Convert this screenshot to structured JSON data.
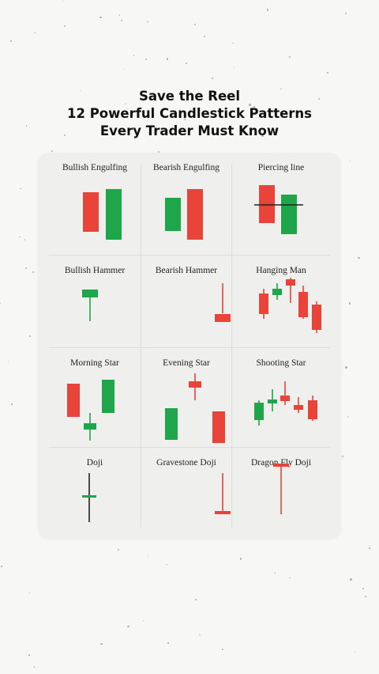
{
  "header": {
    "line1": "Save the Reel",
    "line2": "12 Powerful Candlestick Patterns",
    "line3": "Every Trader Must Know"
  },
  "colors": {
    "bull": "#1fa64a",
    "bear": "#e8443a",
    "line": "#222222"
  },
  "patterns": [
    {
      "label": "Bullish Engulfing",
      "icon": "bullish-engulfing-icon"
    },
    {
      "label": "Bearish Engulfing",
      "icon": "bearish-engulfing-icon"
    },
    {
      "label": "Piercing line",
      "icon": "piercing-line-icon"
    },
    {
      "label": "Bullish Hammer",
      "icon": "bullish-hammer-icon"
    },
    {
      "label": "Bearish Hammer",
      "icon": "bearish-hammer-icon"
    },
    {
      "label": "Hanging Man",
      "icon": "hanging-man-icon"
    },
    {
      "label": "Morning Star",
      "icon": "morning-star-icon"
    },
    {
      "label": "Evening Star",
      "icon": "evening-star-icon"
    },
    {
      "label": "Shooting Star",
      "icon": "shooting-star-icon"
    },
    {
      "label": "Doji",
      "icon": "doji-icon"
    },
    {
      "label": "Gravestone Doji",
      "icon": "gravestone-doji-icon"
    },
    {
      "label": "Dragon Fly Doji",
      "icon": "dragonfly-doji-icon"
    }
  ]
}
